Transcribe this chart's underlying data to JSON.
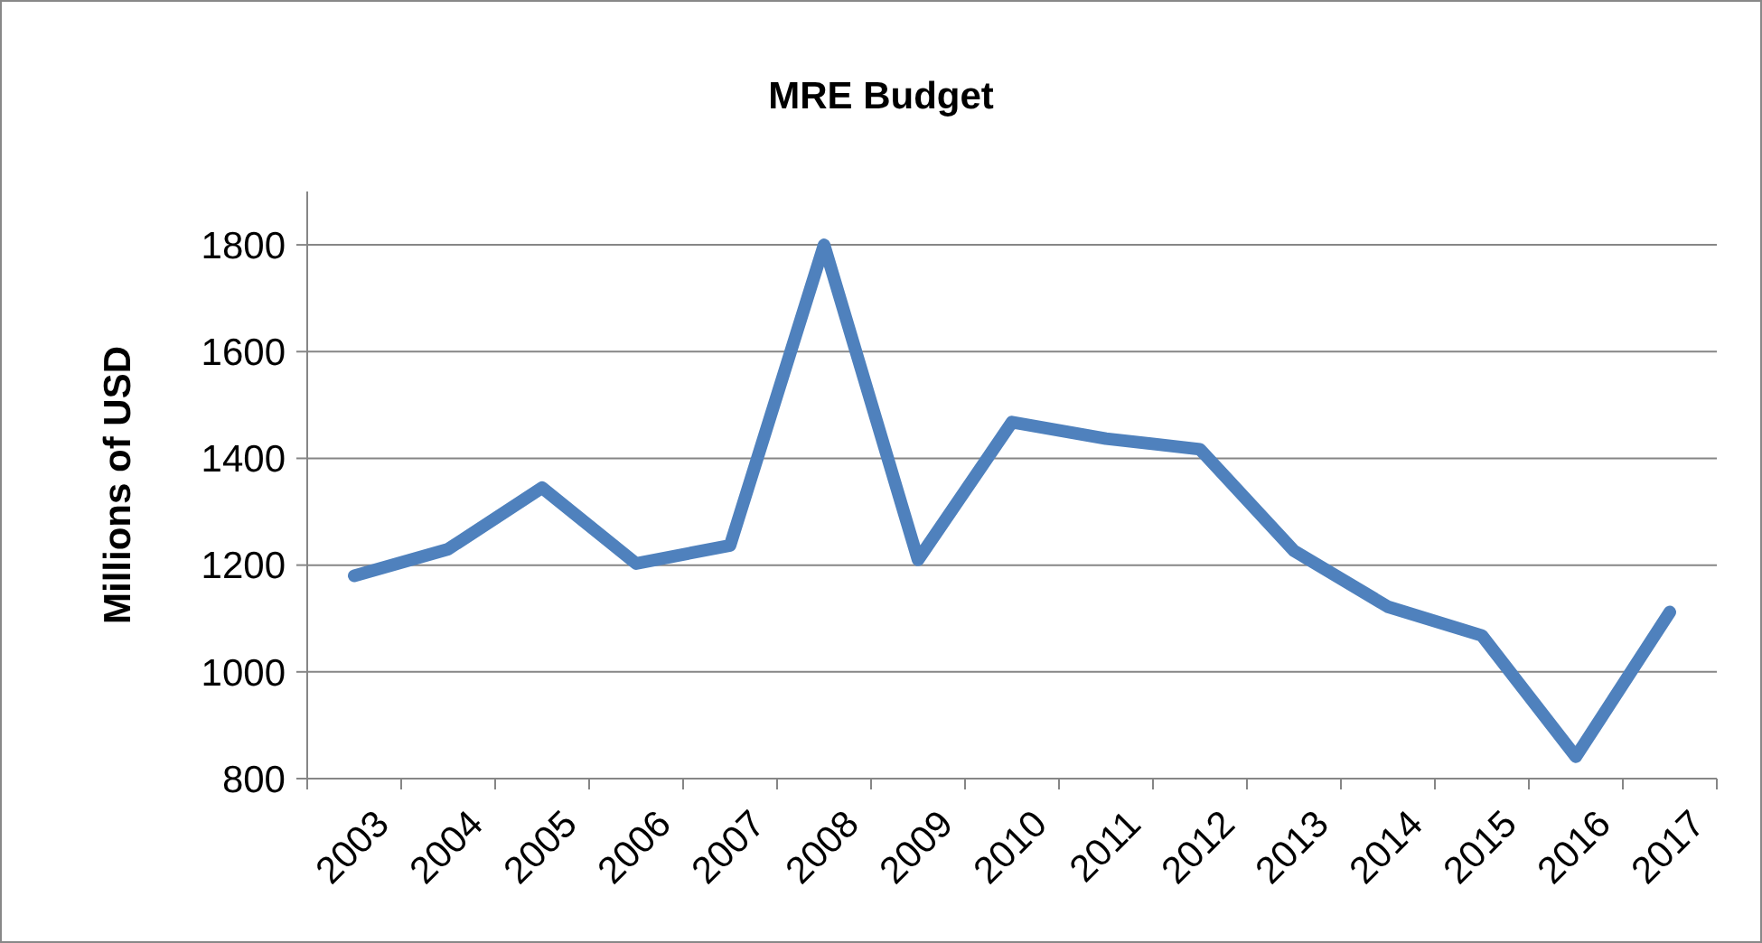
{
  "chart_data": {
    "type": "line",
    "title": "MRE Budget",
    "ylabel": "Millions of USD",
    "categories": [
      "2003",
      "2004",
      "2005",
      "2006",
      "2007",
      "2008",
      "2009",
      "2010",
      "2011",
      "2012",
      "2013",
      "2014",
      "2015",
      "2016",
      "2017"
    ],
    "series": [
      {
        "color": "#4f81bd",
        "values": [
          1180,
          1230,
          1345,
          1203,
          1237,
          1800,
          1210,
          1468,
          1437,
          1417,
          1227,
          1122,
          1068,
          841,
          1112
        ]
      }
    ],
    "ylim": [
      800,
      1900
    ],
    "yticks": [
      800,
      1000,
      1200,
      1400,
      1600,
      1800
    ],
    "grid": "y",
    "marker": "none",
    "line_style": "solid"
  }
}
